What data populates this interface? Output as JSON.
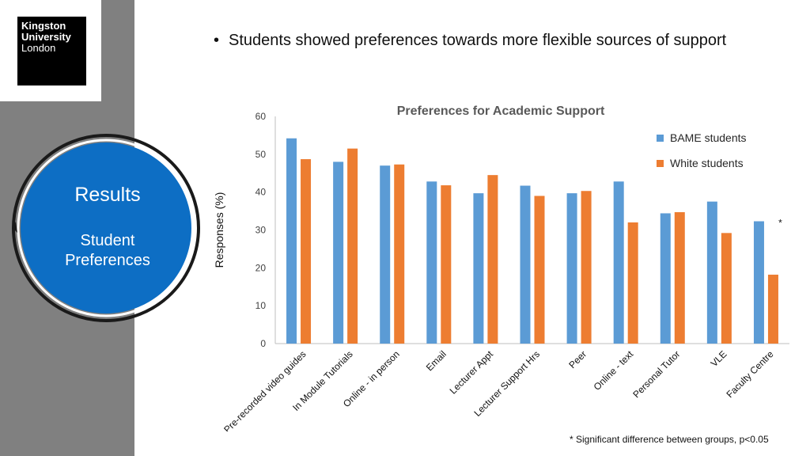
{
  "logo": {
    "line1": "Kingston",
    "line2": "University",
    "line3": "London"
  },
  "section": {
    "title": "Results",
    "subtitle_line1": "Student",
    "subtitle_line2": "Preferences"
  },
  "bullet": "Students showed preferences towards more flexible sources of support",
  "footnote": "* Significant difference between groups,  p<0.05",
  "colors": {
    "bame": "#5b9bd5",
    "white": "#ed7d31",
    "circle": "#0d6ec4",
    "sidebar": "#808080"
  },
  "chart_data": {
    "type": "bar",
    "title": "Preferences for Academic Support",
    "ylabel": "Responses (%)",
    "xlabel": "",
    "ylim": [
      0,
      60
    ],
    "yticks": [
      0,
      10,
      20,
      30,
      40,
      50,
      60
    ],
    "grid": false,
    "legend": "top-right",
    "categories": [
      "Pre-recorded video guides",
      "In Module Tutorials",
      "Online - in person",
      "Email",
      "Lecturer Appt",
      "Lecturer Support Hrs",
      "Peer",
      "Online - text",
      "Personal Tutor",
      "VLE",
      "Faculty Centre"
    ],
    "series": [
      {
        "name": "BAME students",
        "values": [
          54.2,
          48,
          47,
          42.8,
          39.7,
          41.7,
          39.7,
          42.8,
          34.4,
          37.5,
          32.3
        ]
      },
      {
        "name": "White students",
        "values": [
          48.7,
          51.5,
          47.3,
          41.8,
          44.5,
          39,
          40.3,
          32,
          34.7,
          29.2,
          18.2
        ]
      }
    ],
    "annotations": [
      {
        "category": "Faculty Centre",
        "text": "*"
      }
    ]
  }
}
